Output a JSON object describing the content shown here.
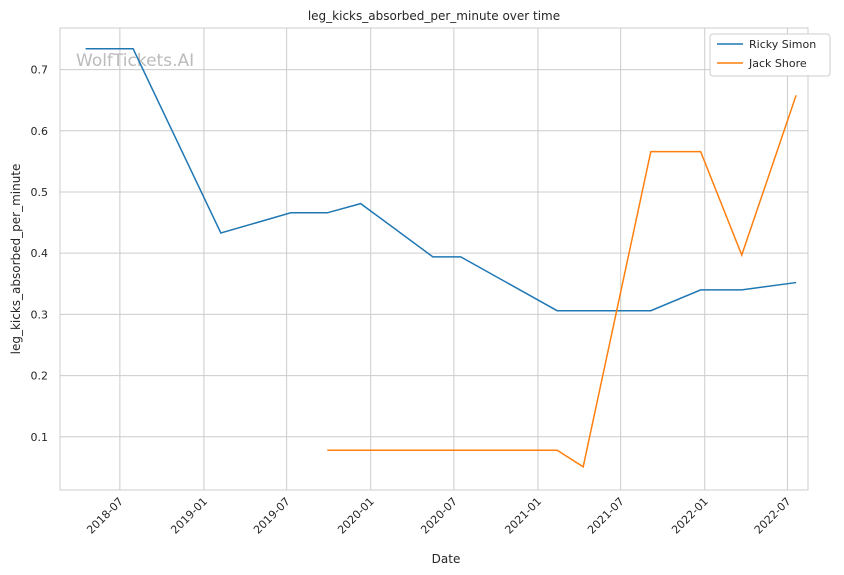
{
  "chart_data": {
    "type": "line",
    "title": "leg_kicks_absorbed_per_minute over time",
    "xlabel": "Date",
    "ylabel": "leg_kicks_absorbed_per_minute",
    "watermark": "WolfTickets.AI",
    "grid": true,
    "legend_position": "top-right",
    "ylim": [
      0.013,
      0.768
    ],
    "xlim": [
      "2018-02-20",
      "2022-08-15"
    ],
    "yticks": [
      0.1,
      0.2,
      0.3,
      0.4,
      0.5,
      0.6,
      0.7
    ],
    "xticks": [
      "2018-07",
      "2019-01",
      "2019-07",
      "2020-01",
      "2020-07",
      "2021-01",
      "2021-07",
      "2022-01",
      "2022-07"
    ],
    "series": [
      {
        "name": "Ricky Simon",
        "color": "#1f77b4",
        "x": [
          "2018-04-17",
          "2018-07-30",
          "2019-02-07",
          "2019-07-10",
          "2019-09-28",
          "2019-12-10",
          "2020-05-16",
          "2020-07-16",
          "2021-02-12",
          "2021-09-05",
          "2021-12-23",
          "2022-03-23",
          "2022-07-20"
        ],
        "y": [
          0.734,
          0.734,
          0.433,
          0.466,
          0.466,
          0.481,
          0.394,
          0.394,
          0.306,
          0.306,
          0.34,
          0.34,
          0.352
        ]
      },
      {
        "name": "Jack Shore",
        "color": "#ff7f0e",
        "x": [
          "2019-09-28",
          "2021-02-12",
          "2021-04-10",
          "2021-09-05",
          "2021-12-23",
          "2022-03-23",
          "2022-07-20"
        ],
        "y": [
          0.078,
          0.078,
          0.051,
          0.566,
          0.566,
          0.397,
          0.658
        ]
      }
    ]
  }
}
